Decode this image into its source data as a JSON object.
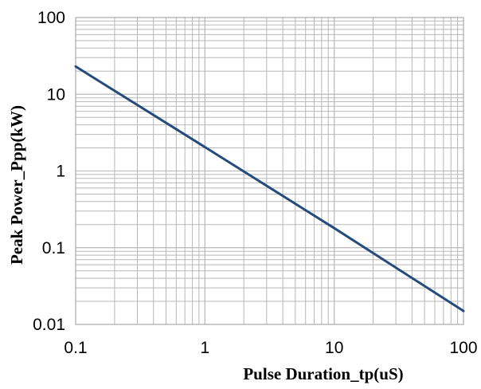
{
  "chart_data": {
    "type": "line",
    "title": "",
    "xlabel": "Pulse Duration_tp(uS)",
    "ylabel": "Peak  Power_Ppp(kW)",
    "xscale": "log",
    "yscale": "log",
    "xlim": [
      0.1,
      100
    ],
    "ylim": [
      0.01,
      100
    ],
    "x_tick_labels": [
      "0.1",
      "1",
      "10",
      "100"
    ],
    "y_tick_labels": [
      "0.01",
      "0.1",
      "1",
      "10",
      "100"
    ],
    "grid": true,
    "legend": "none",
    "series": [
      {
        "x": [
          0.1,
          1,
          10,
          100
        ],
        "y": [
          23,
          2.05,
          0.18,
          0.015
        ]
      }
    ]
  },
  "colors": {
    "line": "#254a7d",
    "grid": "#b8b8b8",
    "frame": "#999999",
    "background": "#ffffff"
  }
}
